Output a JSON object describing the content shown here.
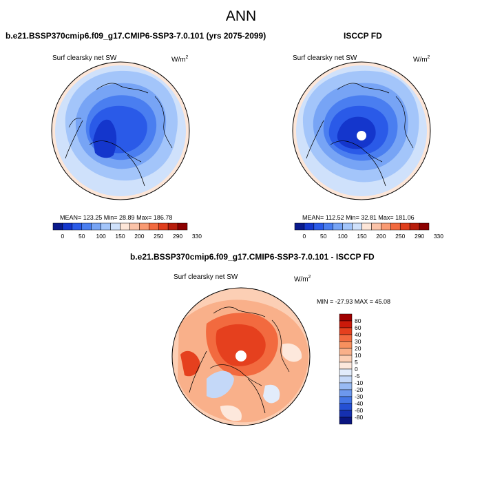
{
  "title": "ANN",
  "panels": {
    "left": {
      "title": "b.e21.BSSP370cmip6.f09_g17.CMIP6-SSP3-7.0.101 (yrs 2075-2099)",
      "variable": "Surf clearsky net SW",
      "units_base": "W/m",
      "units_exp": "2",
      "stats": "MEAN= 123.25  Min=  28.89  Max= 186.78"
    },
    "right": {
      "title": "ISCCP FD",
      "variable": "Surf clearsky net SW",
      "units_base": "W/m",
      "units_exp": "2",
      "stats": "MEAN= 112.52  Min=  32.81  Max= 181.06"
    },
    "diff": {
      "title": "b.e21.BSSP370cmip6.f09_g17.CMIP6-SSP3-7.0.101 - ISCCP FD",
      "variable": "Surf clearsky net SW",
      "units_base": "W/m",
      "units_exp": "2",
      "stats": "MIN = -27.93 MAX =  45.08"
    }
  },
  "chart_data": [
    {
      "type": "heatmap",
      "projection": "north-polar-stereographic",
      "title": "b.e21.BSSP370cmip6.f09_g17.CMIP6-SSP3-7.0.101 (yrs 2075-2099)",
      "variable": "Surf clearsky net SW",
      "units": "W/m2",
      "mean": 123.25,
      "min": 28.89,
      "max": 186.78,
      "colorbar": {
        "orientation": "horizontal",
        "levels": [
          0,
          50,
          100,
          150,
          200,
          250,
          290,
          330
        ],
        "tick_labels": [
          "0",
          "50",
          "100",
          "150",
          "200",
          "250",
          "290",
          "330"
        ],
        "colors": [
          "#0a1a8c",
          "#1436cc",
          "#2a5ae8",
          "#4a7ef0",
          "#77a4f5",
          "#a3c5fa",
          "#cfe1fb",
          "#fde6d8",
          "#fbc3a8",
          "#f99a72",
          "#f26a3f",
          "#e03e1c",
          "#b81d0b",
          "#8c0000"
        ]
      }
    },
    {
      "type": "heatmap",
      "projection": "north-polar-stereographic",
      "title": "ISCCP FD",
      "variable": "Surf clearsky net SW",
      "units": "W/m2",
      "mean": 112.52,
      "min": 32.81,
      "max": 181.06,
      "colorbar": {
        "orientation": "horizontal",
        "levels": [
          0,
          50,
          100,
          150,
          200,
          250,
          290,
          330
        ],
        "tick_labels": [
          "0",
          "50",
          "100",
          "150",
          "200",
          "250",
          "290",
          "330"
        ],
        "colors": [
          "#0a1a8c",
          "#1436cc",
          "#2a5ae8",
          "#4a7ef0",
          "#77a4f5",
          "#a3c5fa",
          "#cfe1fb",
          "#fde6d8",
          "#fbc3a8",
          "#f99a72",
          "#f26a3f",
          "#e03e1c",
          "#b81d0b",
          "#8c0000"
        ]
      }
    },
    {
      "type": "heatmap",
      "projection": "north-polar-stereographic",
      "title": "b.e21.BSSP370cmip6.f09_g17.CMIP6-SSP3-7.0.101 - ISCCP FD",
      "variable": "Surf clearsky net SW",
      "units": "W/m2",
      "min": -27.93,
      "max": 45.08,
      "colorbar": {
        "orientation": "vertical",
        "levels": [
          80,
          60,
          40,
          30,
          20,
          10,
          5,
          0,
          -5,
          -10,
          -20,
          -30,
          -40,
          -60,
          -80
        ],
        "tick_labels": [
          "80",
          "60",
          "40",
          "30",
          "20",
          "10",
          "5",
          "0",
          "-5",
          "-10",
          "-20",
          "-30",
          "-40",
          "-60",
          "-80"
        ],
        "colors": [
          "#a00000",
          "#cc1a0a",
          "#e5401e",
          "#f26a3f",
          "#f7905e",
          "#f9b08a",
          "#fccfb5",
          "#fde8dc",
          "#e2ecfb",
          "#c4d8f8",
          "#98baf3",
          "#6d98ee",
          "#4475e6",
          "#2550d4",
          "#1530b0",
          "#0a1680"
        ]
      }
    }
  ]
}
